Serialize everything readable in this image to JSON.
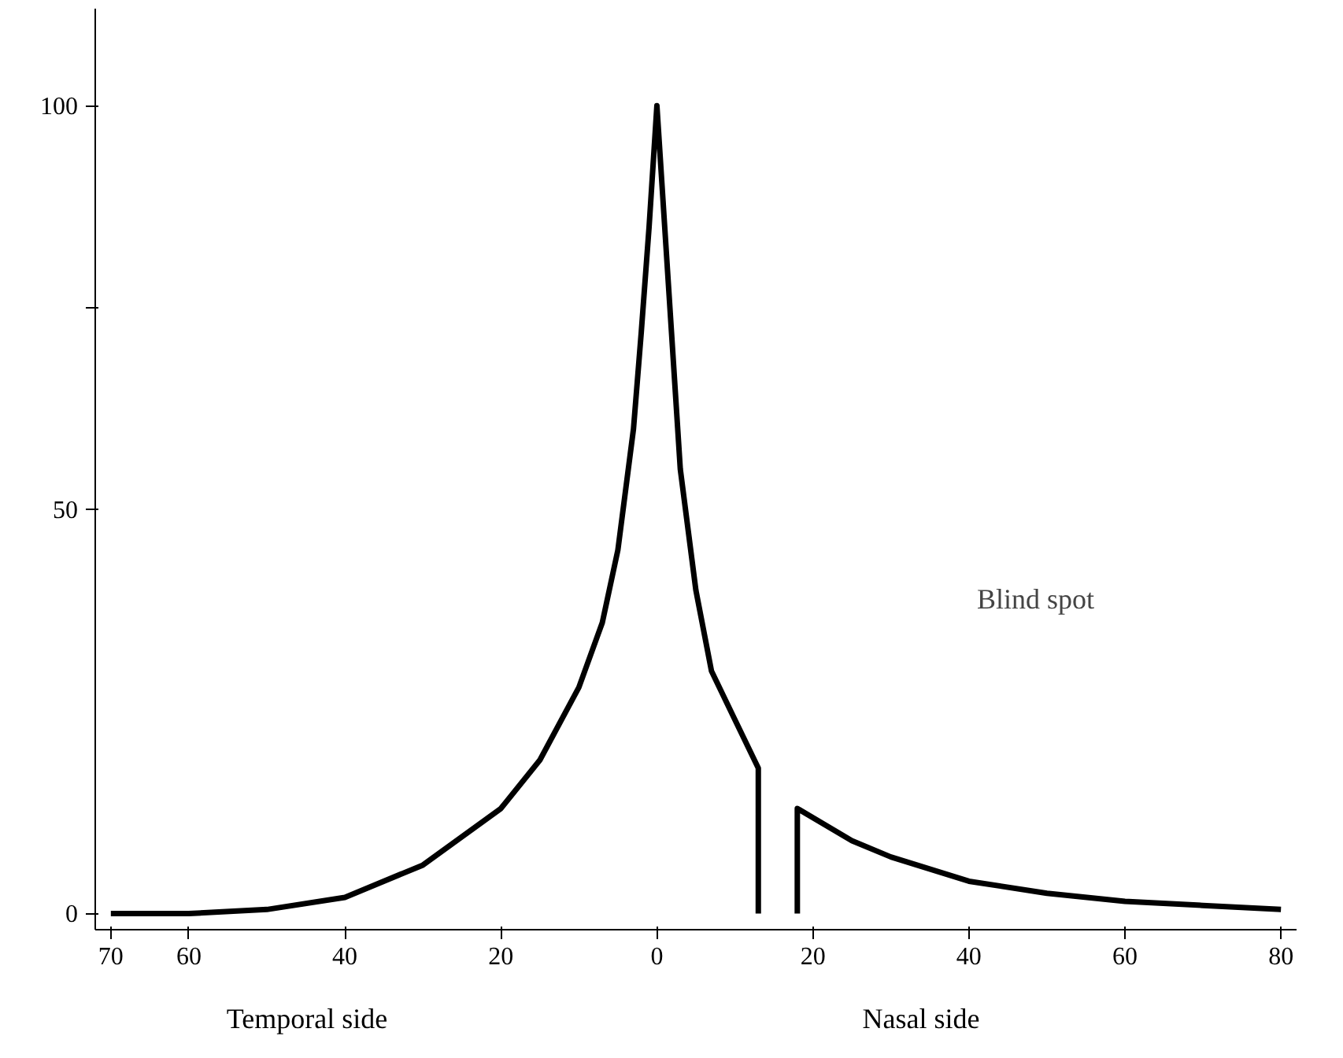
{
  "chart_data": {
    "type": "line",
    "series": [
      {
        "color": "#000000",
        "x": [
          -70,
          -60,
          -50,
          -40,
          -30,
          -20,
          -15,
          -10,
          -7,
          -5,
          -3,
          -2,
          -1,
          0,
          1,
          2,
          3,
          5,
          7,
          10,
          13,
          13,
          15.5,
          18,
          18,
          25,
          30,
          40,
          50,
          60,
          70,
          80
        ],
        "values": [
          0,
          0,
          0.5,
          2,
          6,
          13,
          19,
          28,
          36,
          45,
          60,
          72,
          85,
          100,
          85,
          70,
          55,
          40,
          30,
          24,
          18,
          0,
          null,
          0,
          13,
          9,
          7,
          4,
          2.5,
          1.5,
          1,
          0.5
        ]
      }
    ],
    "xlim": [
      -72,
      82
    ],
    "ylim": [
      -2,
      112
    ],
    "xticks": [
      {
        "value": -70,
        "label": "70"
      },
      {
        "value": -60,
        "label": "60"
      },
      {
        "value": -40,
        "label": "40"
      },
      {
        "value": -20,
        "label": "20"
      },
      0,
      20,
      40,
      60,
      80
    ],
    "yticks": [
      0,
      50,
      {
        "value": 75,
        "label": null
      },
      100
    ],
    "annotations": [
      "Blind spot",
      "Temporal side",
      "Nasal side"
    ],
    "grid": false,
    "marker": "none",
    "line_style": "solid"
  }
}
